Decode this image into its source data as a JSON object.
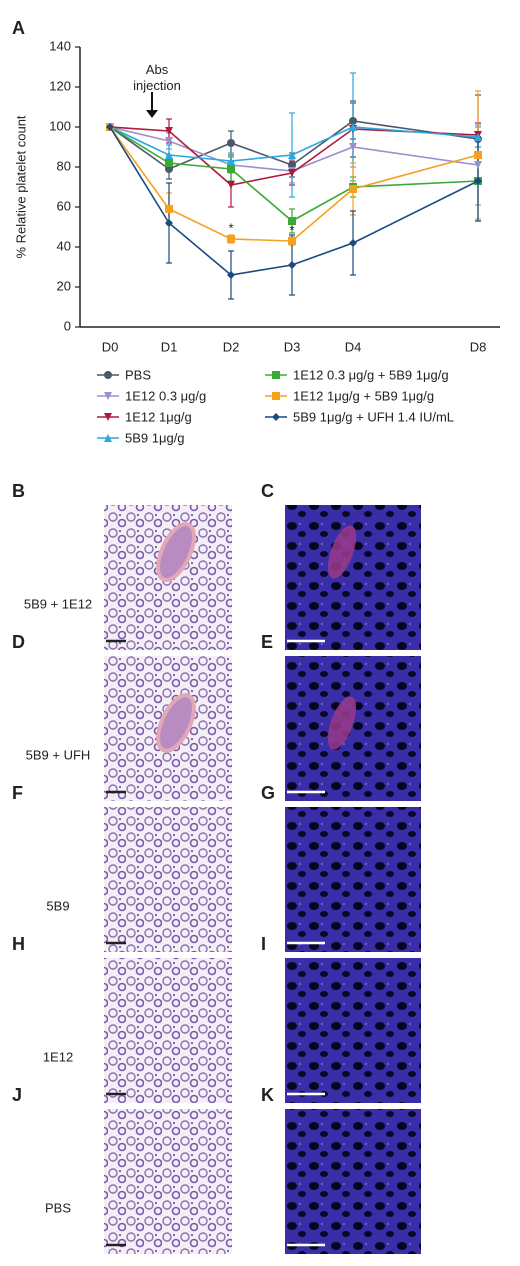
{
  "panel_label": "A",
  "chart_data": {
    "type": "line",
    "ylabel": "% Relative platelet count",
    "categories": [
      "D0",
      "D1",
      "D2",
      "D3",
      "D4",
      "D8"
    ],
    "ylim": [
      0,
      140
    ],
    "yticks": [
      0,
      20,
      40,
      60,
      80,
      100,
      120,
      140
    ],
    "annotation": [
      "Abs",
      "injection"
    ],
    "significance": [
      {
        "text": "*",
        "category": 2,
        "series": 5
      },
      {
        "text": "*",
        "category": 3,
        "series": 5
      }
    ],
    "series": [
      {
        "name": "PBS",
        "color": "#4a5868",
        "marker": "circle",
        "values": [
          100,
          79,
          92,
          81,
          103,
          94
        ],
        "errors": [
          0,
          5,
          6,
          6,
          9,
          22
        ]
      },
      {
        "name": "1E12 0.3 μg/g",
        "color": "#9a8fcc",
        "marker": "tri-down",
        "values": [
          100,
          93,
          81,
          78,
          90,
          81
        ],
        "errors": [
          0,
          4,
          4,
          6,
          10,
          20
        ]
      },
      {
        "name": "1E12 1μg/g",
        "color": "#b0183c",
        "marker": "tri-down",
        "values": [
          100,
          98,
          71,
          77,
          99,
          96
        ],
        "errors": [
          0,
          6,
          11,
          6,
          14,
          6
        ]
      },
      {
        "name": "5B9 1μg/g",
        "color": "#2aa8e0",
        "marker": "tri-up",
        "values": [
          100,
          86,
          83,
          86,
          100,
          95
        ],
        "errors": [
          0,
          5,
          4,
          21,
          27,
          5
        ]
      },
      {
        "name": "1E12 0.3 μg/g + 5B9 1μg/g",
        "color": "#3aaa35",
        "marker": "square",
        "values": [
          100,
          82,
          79,
          53,
          70,
          73
        ],
        "errors": [
          0,
          4,
          6,
          6,
          5,
          20
        ]
      },
      {
        "name": "1E12 1μg/g + 5B9 1μg/g",
        "color": "#f5a01e",
        "marker": "square",
        "values": [
          100,
          59,
          44,
          43,
          69,
          86
        ],
        "errors": [
          0,
          8,
          2,
          2,
          13,
          32
        ]
      },
      {
        "name": "5B9 1μg/g + UFH 1.4 IU/mL",
        "color": "#1a4a80",
        "marker": "diamond",
        "values": [
          100,
          52,
          26,
          31,
          42,
          73
        ],
        "errors": [
          0,
          20,
          12,
          15,
          16,
          20
        ]
      }
    ]
  },
  "rows": [
    {
      "left": {
        "label": "B",
        "caption": "5B9 + 1E12"
      },
      "right": {
        "label": "C"
      }
    },
    {
      "left": {
        "label": "D",
        "caption": "5B9 + UFH"
      },
      "right": {
        "label": "E"
      }
    },
    {
      "left": {
        "label": "F",
        "caption": "5B9"
      },
      "right": {
        "label": "G"
      }
    },
    {
      "left": {
        "label": "H",
        "caption": "1E12"
      },
      "right": {
        "label": "I"
      }
    },
    {
      "left": {
        "label": "J",
        "caption": "PBS"
      },
      "right": {
        "label": "K"
      }
    }
  ]
}
